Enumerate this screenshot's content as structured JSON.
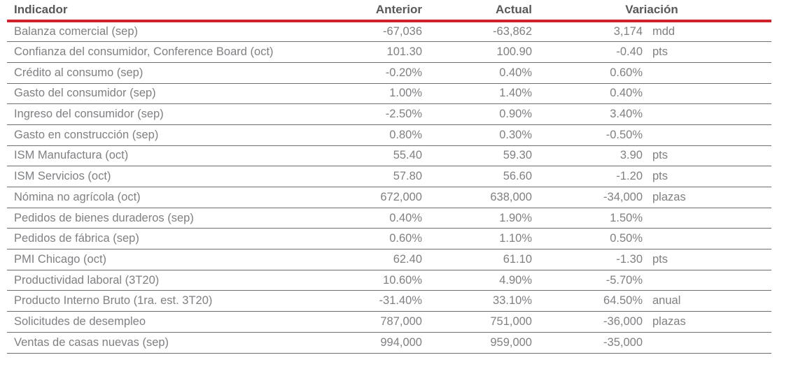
{
  "colors": {
    "accent_red": "#cf222b",
    "header_text": "#58595b",
    "body_text": "#7f8083",
    "row_line": "#6d6e71"
  },
  "chart_data": {
    "type": "table",
    "title": "",
    "columns": [
      "Indicador",
      "Anterior",
      "Actual",
      "Variación"
    ],
    "rows": [
      {
        "indicator": "Balanza comercial (sep)",
        "previous": "-67,036",
        "current": "-63,862",
        "variation": "3,174",
        "unit": "mdd"
      },
      {
        "indicator": "Confianza del consumidor, Conference Board (oct)",
        "previous": "101.30",
        "current": "100.90",
        "variation": "-0.40",
        "unit": "pts"
      },
      {
        "indicator": "Crédito al consumo (sep)",
        "previous": "-0.20%",
        "current": "0.40%",
        "variation": "0.60%",
        "unit": ""
      },
      {
        "indicator": "Gasto del consumidor (sep)",
        "previous": "1.00%",
        "current": "1.40%",
        "variation": "0.40%",
        "unit": ""
      },
      {
        "indicator": "Ingreso del consumidor (sep)",
        "previous": "-2.50%",
        "current": "0.90%",
        "variation": "3.40%",
        "unit": ""
      },
      {
        "indicator": "Gasto en construcción (sep)",
        "previous": "0.80%",
        "current": "0.30%",
        "variation": "-0.50%",
        "unit": ""
      },
      {
        "indicator": "ISM Manufactura (oct)",
        "previous": "55.40",
        "current": "59.30",
        "variation": "3.90",
        "unit": "pts"
      },
      {
        "indicator": "ISM Servicios (oct)",
        "previous": "57.80",
        "current": "56.60",
        "variation": "-1.20",
        "unit": "pts"
      },
      {
        "indicator": "Nómina no agrícola (oct)",
        "previous": "672,000",
        "current": "638,000",
        "variation": "-34,000",
        "unit": "plazas"
      },
      {
        "indicator": "Pedidos de bienes duraderos (sep)",
        "previous": "0.40%",
        "current": "1.90%",
        "variation": "1.50%",
        "unit": ""
      },
      {
        "indicator": "Pedidos de fábrica (sep)",
        "previous": "0.60%",
        "current": "1.10%",
        "variation": "0.50%",
        "unit": ""
      },
      {
        "indicator": "PMI Chicago (oct)",
        "previous": "62.40",
        "current": "61.10",
        "variation": "-1.30",
        "unit": "pts"
      },
      {
        "indicator": "Productividad laboral (3T20)",
        "previous": "10.60%",
        "current": "4.90%",
        "variation": "-5.70%",
        "unit": ""
      },
      {
        "indicator": "Producto Interno Bruto (1ra. est. 3T20)",
        "previous": "-31.40%",
        "current": "33.10%",
        "variation": "64.50%",
        "unit": "anual"
      },
      {
        "indicator": "Solicitudes de desempleo",
        "previous": "787,000",
        "current": "751,000",
        "variation": "-36,000",
        "unit": "plazas"
      },
      {
        "indicator": "Ventas de casas nuevas (sep)",
        "previous": "994,000",
        "current": "959,000",
        "variation": "-35,000",
        "unit": ""
      }
    ]
  }
}
